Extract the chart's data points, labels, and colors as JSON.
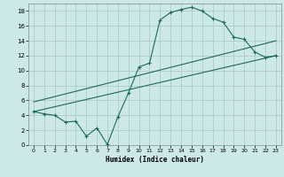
{
  "xlabel": "Humidex (Indice chaleur)",
  "background_color": "#cce8e8",
  "grid_color": "#b0c8c8",
  "line_color": "#1a6b5a",
  "xlim": [
    -0.5,
    23.5
  ],
  "ylim": [
    0,
    19
  ],
  "xticks": [
    0,
    1,
    2,
    3,
    4,
    5,
    6,
    7,
    8,
    9,
    10,
    11,
    12,
    13,
    14,
    15,
    16,
    17,
    18,
    19,
    20,
    21,
    22,
    23
  ],
  "yticks": [
    0,
    2,
    4,
    6,
    8,
    10,
    12,
    14,
    16,
    18
  ],
  "curve1_x": [
    0,
    1,
    2,
    3,
    4,
    5,
    6,
    7,
    8,
    9,
    10,
    11,
    12,
    13,
    14,
    15,
    16,
    17,
    18,
    19,
    20,
    21,
    22,
    23
  ],
  "curve1_y": [
    4.5,
    4.2,
    4.0,
    3.1,
    3.2,
    1.2,
    2.3,
    0.1,
    3.8,
    7.0,
    10.5,
    11.0,
    16.8,
    17.8,
    18.2,
    18.5,
    18.0,
    17.0,
    16.5,
    14.5,
    14.2,
    12.5,
    11.8,
    12.0
  ],
  "curve2_x": [
    0,
    23
  ],
  "curve2_y": [
    4.5,
    12.0
  ],
  "curve3_x": [
    0,
    23
  ],
  "curve3_y": [
    5.8,
    14.0
  ],
  "marker": "+"
}
